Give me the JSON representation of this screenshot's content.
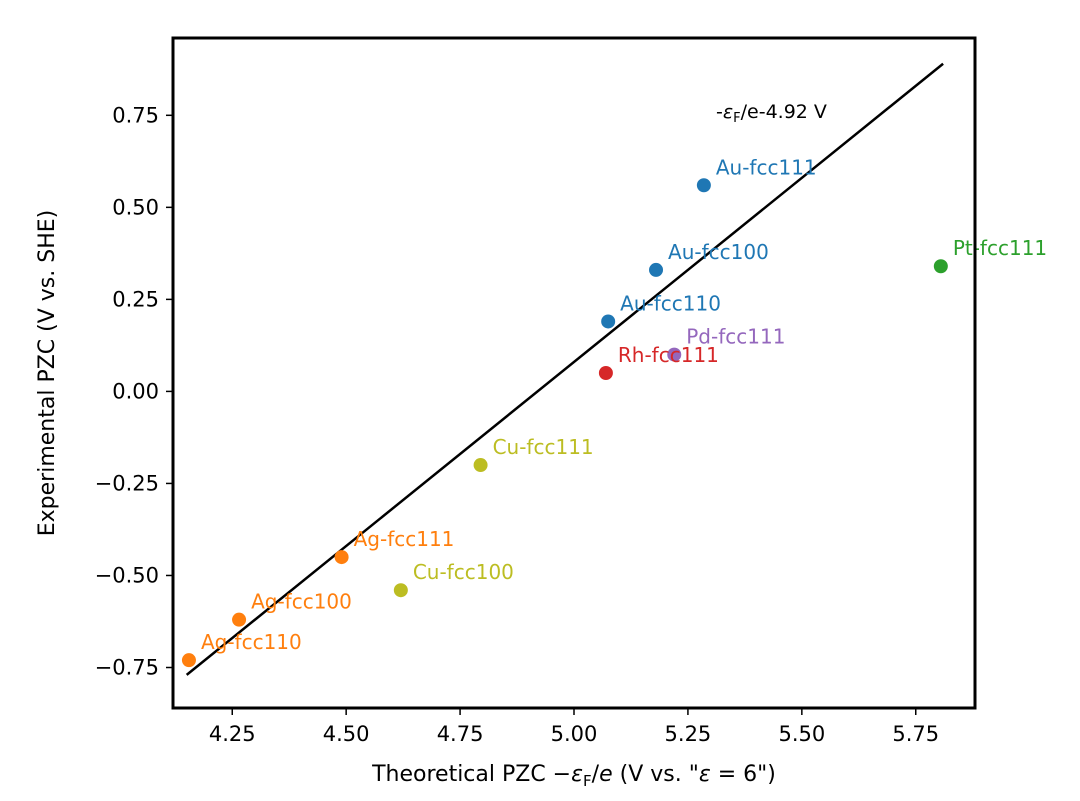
{
  "chart_data": {
    "type": "scatter",
    "title": "",
    "xlabel": "Theoretical PZC −ε_F/e (V vs. \"ε = 6\")",
    "ylabel": "Experimental PZC (V vs. SHE)",
    "xlim": [
      4.12,
      5.88
    ],
    "ylim": [
      -0.86,
      0.96
    ],
    "x_ticks": [
      "4.25",
      "4.50",
      "4.75",
      "5.00",
      "5.25",
      "5.50",
      "5.75"
    ],
    "y_ticks": [
      "−0.75",
      "−0.50",
      "−0.25",
      "0.00",
      "0.25",
      "0.50",
      "0.75"
    ],
    "fit_line": {
      "label": "-ε_F/e-4.92 V",
      "slope": 1,
      "intercept": -4.92,
      "x_range": [
        4.15,
        5.81
      ],
      "color": "#000000"
    },
    "points": [
      {
        "label": "Au-fcc111",
        "x": 5.285,
        "y": 0.56,
        "color": "#1f77b4"
      },
      {
        "label": "Au-fcc100",
        "x": 5.18,
        "y": 0.33,
        "color": "#1f77b4"
      },
      {
        "label": "Au-fcc110",
        "x": 5.075,
        "y": 0.19,
        "color": "#1f77b4"
      },
      {
        "label": "Pt-fcc111",
        "x": 5.805,
        "y": 0.34,
        "color": "#2ca02c"
      },
      {
        "label": "Pd-fcc111",
        "x": 5.22,
        "y": 0.1,
        "color": "#9467bd"
      },
      {
        "label": "Rh-fcc111",
        "x": 5.07,
        "y": 0.05,
        "color": "#d62728"
      },
      {
        "label": "Cu-fcc111",
        "x": 4.795,
        "y": -0.2,
        "color": "#bcbd22"
      },
      {
        "label": "Cu-fcc100",
        "x": 4.62,
        "y": -0.54,
        "color": "#bcbd22"
      },
      {
        "label": "Ag-fcc111",
        "x": 4.49,
        "y": -0.45,
        "color": "#ff7f0e"
      },
      {
        "label": "Ag-fcc100",
        "x": 4.265,
        "y": -0.62,
        "color": "#ff7f0e"
      },
      {
        "label": "Ag-fcc110",
        "x": 4.155,
        "y": -0.73,
        "color": "#ff7f0e"
      }
    ]
  }
}
